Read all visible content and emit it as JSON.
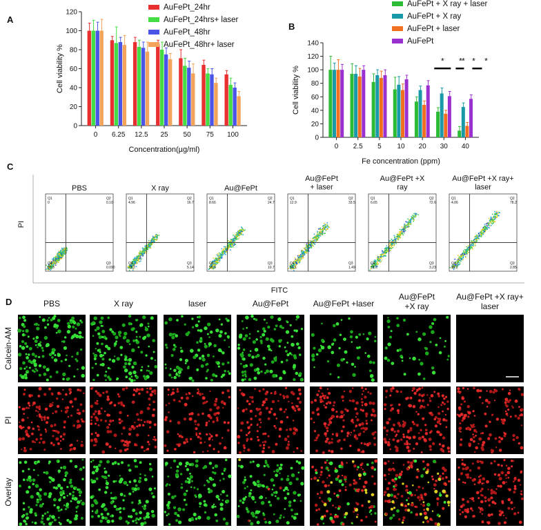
{
  "panels": {
    "A": {
      "letter": "A"
    },
    "B": {
      "letter": "B"
    },
    "C": {
      "letter": "C",
      "ylabel": "PI",
      "xlabel": "FITC"
    },
    "D": {
      "letter": "D"
    }
  },
  "chart_data": [
    {
      "id": "A",
      "type": "bar",
      "categories": [
        "0",
        "6.25",
        "12.5",
        "25",
        "50",
        "75",
        "100"
      ],
      "series": [
        {
          "name": "AuFePt_24hr",
          "color": "#e83030",
          "values": [
            100,
            90,
            88,
            86,
            71,
            64,
            54
          ],
          "errors": [
            8,
            4,
            5,
            4,
            9,
            5,
            4
          ]
        },
        {
          "name": "AuFePt_24hrs+ laser",
          "color": "#44dd44",
          "values": [
            100,
            87,
            83,
            80,
            63,
            55,
            43
          ],
          "errors": [
            11,
            17,
            7,
            8,
            8,
            5,
            7
          ]
        },
        {
          "name": "AuFePt_48hr",
          "color": "#4a55e8",
          "values": [
            100,
            88,
            82,
            75,
            61,
            54,
            40
          ],
          "errors": [
            9,
            5,
            6,
            7,
            7,
            6,
            5
          ]
        },
        {
          "name": "AuFePt_48hr+ laser",
          "color": "#f3a35a",
          "values": [
            100,
            85,
            78,
            70,
            55,
            45,
            31
          ],
          "errors": [
            12,
            10,
            10,
            6,
            10,
            5,
            5
          ]
        }
      ],
      "xlabel": "Concentration(µg/ml)",
      "ylabel": "Cell viability %",
      "ylim": [
        0,
        120
      ],
      "yticks": [
        0,
        20,
        40,
        60,
        80,
        100,
        120
      ],
      "legend": "top-right"
    },
    {
      "id": "B",
      "type": "bar",
      "categories": [
        "0",
        "2.5",
        "5",
        "10",
        "20",
        "30",
        "40"
      ],
      "series": [
        {
          "name": "AuFePt + X ray + laser",
          "color": "#2dbb35",
          "values": [
            100,
            94,
            82,
            71,
            53,
            38,
            10
          ],
          "errors": [
            20,
            15,
            12,
            18,
            7,
            6,
            6
          ]
        },
        {
          "name": "AuFePt + X ray",
          "color": "#1a9aa8",
          "values": [
            100,
            94,
            92,
            78,
            70,
            65,
            45
          ],
          "errors": [
            10,
            12,
            8,
            12,
            6,
            8,
            6
          ]
        },
        {
          "name": "AuFePt + laser",
          "color": "#f07020",
          "values": [
            100,
            90,
            88,
            70,
            48,
            35,
            17
          ],
          "errors": [
            15,
            12,
            10,
            9,
            6,
            5,
            5
          ]
        },
        {
          "name": "AuFePt",
          "color": "#9a30d0",
          "values": [
            100,
            100,
            92,
            86,
            77,
            61,
            57
          ],
          "errors": [
            8,
            6,
            8,
            6,
            7,
            7,
            6
          ]
        }
      ],
      "xlabel": "Fe concentration (ppm)",
      "ylabel": "Cell viability %",
      "ylim": [
        0,
        140
      ],
      "yticks": [
        0,
        20,
        40,
        60,
        80,
        100,
        120,
        140
      ],
      "significance": [
        "*",
        "*",
        "*",
        "*",
        "*"
      ],
      "legend": "top-right"
    },
    {
      "id": "C",
      "type": "scatter",
      "plots": [
        {
          "title": "PBS",
          "q1": "Q1",
          "q2": "Q2",
          "q3": "Q3",
          "q4": "Q4",
          "v1": "0",
          "v2": "0.10",
          "v3": "0.090",
          "v4": "99.8",
          "spread": 0.0
        },
        {
          "title": "X ray",
          "q1": "Q1",
          "q2": "Q2",
          "q3": "Q3",
          "q4": "Q4",
          "v1": "4.96",
          "v2": "16.7",
          "v3": "5.14",
          "v4": "73.2",
          "spread": 0.3
        },
        {
          "title": "Au@FePt",
          "q1": "Q1",
          "q2": "Q2",
          "q3": "Q3",
          "q4": "Q4",
          "v1": "8.66",
          "v2": "24.7",
          "v3": "10.7",
          "v4": "55.9",
          "spread": 0.45
        },
        {
          "title": "Au@FePt\n+ laser",
          "q1": "Q1",
          "q2": "Q2",
          "q3": "Q3",
          "q4": "Q4",
          "v1": "12.9",
          "v2": "33.5",
          "v3": "1.49",
          "v4": "52.1",
          "spread": 0.55
        },
        {
          "title": "Au@FePt +X\nray",
          "q1": "Q1",
          "q2": "Q2",
          "q3": "Q3",
          "q4": "Q4",
          "v1": "6.65",
          "v2": "72.6",
          "v3": "3.23",
          "v4": "18.6",
          "spread": 0.8
        },
        {
          "title": "Au@FePt +X ray+\nlaser",
          "q1": "Q1",
          "q2": "Q2",
          "q3": "Q3",
          "q4": "Q4",
          "v1": "4.06",
          "v2": "78.2",
          "v3": "2.85",
          "v4": "15.2",
          "spread": 0.85
        }
      ]
    },
    {
      "id": "D",
      "type": "table",
      "columns": [
        "PBS",
        "X ray",
        "laser",
        "Au@FePt",
        "Au@FePt +laser",
        "Au@FePt\n+X ray",
        "Au@FePt +X ray+\nlaser"
      ],
      "rows": [
        "Calcein-AM",
        "PI",
        "Overlay"
      ],
      "green_intensity": [
        0.9,
        0.9,
        0.7,
        0.7,
        0.35,
        0.3,
        0.0
      ],
      "red_intensity": [
        0.0,
        0.0,
        0.0,
        0.04,
        0.55,
        0.8,
        0.85
      ]
    }
  ]
}
